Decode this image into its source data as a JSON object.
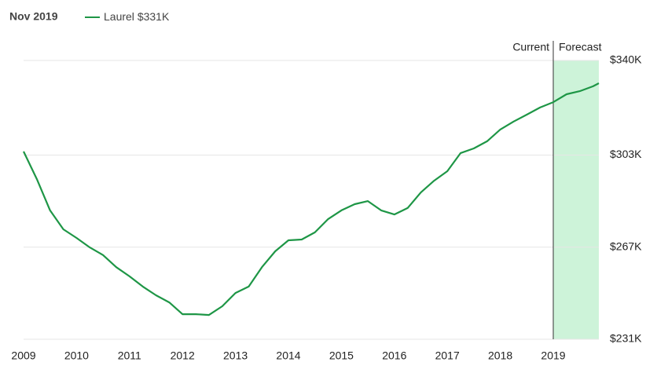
{
  "chart_data": {
    "type": "line",
    "date_label": "Nov 2019",
    "current_label": "Current",
    "forecast_label": "Forecast",
    "forecast_start": 2019,
    "x": [
      2009,
      2009.25,
      2009.5,
      2009.75,
      2010,
      2010.25,
      2010.5,
      2010.75,
      2011,
      2011.25,
      2011.5,
      2011.75,
      2012,
      2012.25,
      2012.5,
      2012.75,
      2013,
      2013.25,
      2013.5,
      2013.75,
      2014,
      2014.25,
      2014.5,
      2014.75,
      2015,
      2015.25,
      2015.5,
      2015.75,
      2016,
      2016.25,
      2016.5,
      2016.75,
      2017,
      2017.25,
      2017.5,
      2017.75,
      2018,
      2018.25,
      2018.5,
      2018.75,
      2019,
      2019.25,
      2019.5,
      2019.75,
      2019.86
    ],
    "series": [
      {
        "name": "Laurel",
        "color": "#1e9646",
        "value_label": "$331K",
        "values": [
          304.4,
          293.6,
          281.4,
          274,
          270.6,
          266.9,
          263.9,
          259.2,
          255.6,
          251.6,
          248.2,
          245.4,
          240.8,
          240.8,
          240.5,
          243.9,
          249.1,
          251.6,
          259.2,
          265.4,
          269.7,
          270,
          272.8,
          278,
          281.4,
          283.8,
          285,
          281.4,
          279.8,
          282.3,
          288.4,
          293,
          296.7,
          303.8,
          305.6,
          308.4,
          313,
          316.1,
          318.8,
          321.6,
          323.7,
          326.8,
          328,
          329.9,
          331.1
        ]
      }
    ],
    "xlim": [
      2009,
      2019.86
    ],
    "xticks": [
      2009,
      2010,
      2011,
      2012,
      2013,
      2014,
      2015,
      2016,
      2017,
      2018,
      2019
    ],
    "ylim": [
      231,
      340
    ],
    "yticks": [
      {
        "value": 231,
        "label": "$231K"
      },
      {
        "value": 267,
        "label": "$267K"
      },
      {
        "value": 303,
        "label": "$303K"
      },
      {
        "value": 340,
        "label": "$340K"
      }
    ],
    "grid": true
  }
}
